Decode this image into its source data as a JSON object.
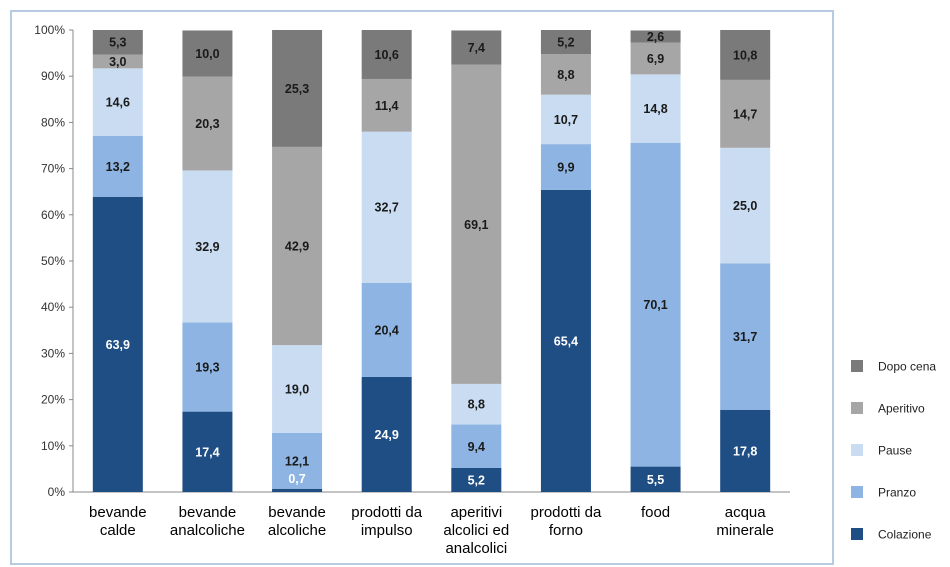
{
  "chart_data": {
    "type": "bar",
    "stacked": true,
    "title": "",
    "xlabel": "",
    "ylabel": "",
    "ylim": [
      0,
      100
    ],
    "y_ticks": [
      "0%",
      "10%",
      "20%",
      "30%",
      "40%",
      "50%",
      "60%",
      "70%",
      "80%",
      "90%",
      "100%"
    ],
    "grid": false,
    "legend_position": "right",
    "categories": [
      [
        "bevande",
        "calde"
      ],
      [
        "bevande",
        "analcoliche"
      ],
      [
        "bevande",
        "alcoliche"
      ],
      [
        "prodotti da",
        "impulso"
      ],
      [
        "aperitivi",
        "alcolici ed",
        "analcolici"
      ],
      [
        "prodotti da",
        "forno"
      ],
      [
        "food"
      ],
      [
        "acqua",
        "minerale"
      ]
    ],
    "series": [
      {
        "name": "Colazione",
        "color": "#1f4e84",
        "label_color": "#ffffff",
        "labels": [
          "63,9",
          "17,4",
          "",
          "24,9",
          "5,2",
          "65,4",
          "5,5",
          "17,8"
        ],
        "values": [
          63.9,
          17.4,
          0.7,
          24.9,
          5.2,
          65.4,
          5.5,
          17.8
        ]
      },
      {
        "name": "Pranzo",
        "color": "#8db4e2",
        "label_color": "#1a1a1a",
        "labels": [
          "13,2",
          "19,3",
          "12,1",
          "20,4",
          "9,4",
          "9,9",
          "70,1",
          "31,7"
        ],
        "values": [
          13.2,
          19.3,
          12.1,
          20.4,
          9.4,
          9.9,
          70.1,
          31.7
        ]
      },
      {
        "name": "Pause",
        "color": "#c9dcf2",
        "label_color": "#1a1a1a",
        "labels": [
          "14,6",
          "32,9",
          "19,0",
          "32,7",
          "8,8",
          "10,7",
          "14,8",
          "25,0"
        ],
        "values": [
          14.6,
          32.9,
          19.0,
          32.7,
          8.8,
          10.7,
          14.8,
          25.0
        ]
      },
      {
        "name": "Aperitivo",
        "color": "#a6a6a6",
        "label_color": "#1a1a1a",
        "labels": [
          "3,0",
          "20,3",
          "42,9",
          "11,4",
          "69,1",
          "8,8",
          "6,9",
          "14,7"
        ],
        "values": [
          3.0,
          20.3,
          42.9,
          11.4,
          69.1,
          8.8,
          6.9,
          14.7
        ]
      },
      {
        "name": "Dopo cena",
        "color": "#7a7a7a",
        "label_color": "#1a1a1a",
        "labels": [
          "5,3",
          "10,0",
          "25,3",
          "10,6",
          "7,4",
          "5,2",
          "2,6",
          "10,8"
        ],
        "values": [
          5.3,
          10.0,
          25.3,
          10.6,
          7.4,
          5.2,
          2.6,
          10.8
        ]
      }
    ],
    "special_labels": [
      {
        "category_index": 2,
        "series_index": 0,
        "text": "0,7",
        "color": "#ffffff"
      }
    ],
    "legend_order": [
      "Dopo cena",
      "Aperitivo",
      "Pause",
      "Pranzo",
      "Colazione"
    ]
  }
}
